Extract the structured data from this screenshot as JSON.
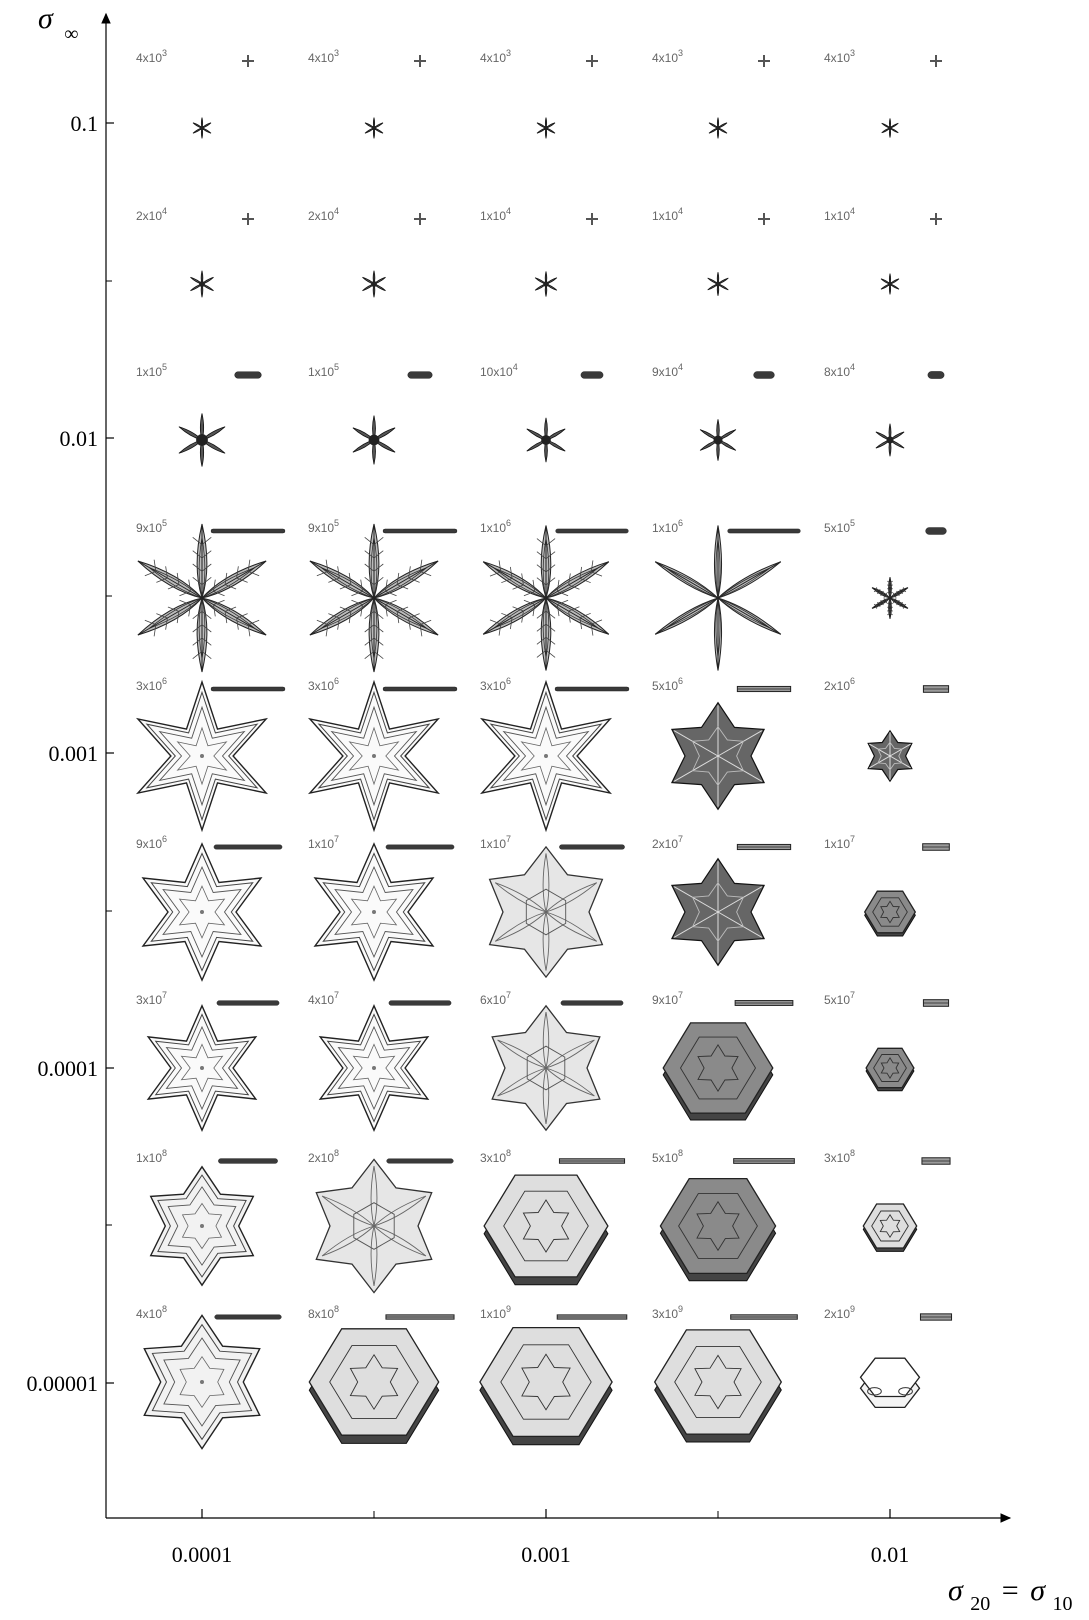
{
  "axes": {
    "y_symbol": "σ",
    "y_subscript": "∞",
    "x_symbol_a": "σ",
    "x_sub_a": "20",
    "x_equals": "=",
    "x_symbol_b": "σ",
    "x_sub_b": "10",
    "y_ticks": [
      "0.1",
      "0.01",
      "0.001",
      "0.0001",
      "0.00001"
    ],
    "x_ticks": [
      "0.0001",
      "0.001",
      "0.01"
    ],
    "scale": "log"
  },
  "rows": [
    {
      "labels": [
        [
          "4x10",
          "3"
        ],
        [
          "4x10",
          "3"
        ],
        [
          "4x10",
          "3"
        ],
        [
          "4x10",
          "3"
        ],
        [
          "4x10",
          "3"
        ]
      ],
      "sizes": [
        0.14,
        0.14,
        0.14,
        0.14,
        0.13
      ],
      "styles": [
        "star",
        "star",
        "star",
        "star",
        "star"
      ]
    },
    {
      "labels": [
        [
          "2x10",
          "4"
        ],
        [
          "2x10",
          "4"
        ],
        [
          "1x10",
          "4"
        ],
        [
          "1x10",
          "4"
        ],
        [
          "1x10",
          "4"
        ]
      ],
      "sizes": [
        0.18,
        0.18,
        0.17,
        0.16,
        0.14
      ],
      "styles": [
        "star",
        "star",
        "star",
        "star",
        "star"
      ]
    },
    {
      "labels": [
        [
          "1x10",
          "5"
        ],
        [
          "1x10",
          "5"
        ],
        [
          "10x10",
          "4"
        ],
        [
          "9x10",
          "4"
        ],
        [
          "8x10",
          "4"
        ]
      ],
      "sizes": [
        0.36,
        0.33,
        0.3,
        0.28,
        0.22
      ],
      "styles": [
        "star",
        "star",
        "star",
        "star",
        "star"
      ]
    },
    {
      "labels": [
        [
          "9x10",
          "5"
        ],
        [
          "9x10",
          "5"
        ],
        [
          "1x10",
          "6"
        ],
        [
          "1x10",
          "6"
        ],
        [
          "5x10",
          "5"
        ]
      ],
      "sizes": [
        1.0,
        1.0,
        0.98,
        0.98,
        0.28
      ],
      "styles": [
        "dendrite",
        "dendrite",
        "dendrite",
        "leaf",
        "dendrite"
      ]
    },
    {
      "labels": [
        [
          "3x10",
          "6"
        ],
        [
          "3x10",
          "6"
        ],
        [
          "3x10",
          "6"
        ],
        [
          "5x10",
          "6"
        ],
        [
          "2x10",
          "6"
        ]
      ],
      "sizes": [
        1.0,
        1.0,
        1.0,
        0.72,
        0.34
      ],
      "styles": [
        "fern",
        "fern",
        "fern",
        "dense",
        "dense"
      ]
    },
    {
      "labels": [
        [
          "9x10",
          "6"
        ],
        [
          "1x10",
          "7"
        ],
        [
          "1x10",
          "7"
        ],
        [
          "2x10",
          "7"
        ],
        [
          "1x10",
          "7"
        ]
      ],
      "sizes": [
        0.92,
        0.92,
        0.88,
        0.72,
        0.36
      ],
      "styles": [
        "sector",
        "sector",
        "sectorplate",
        "dense",
        "hexdense"
      ]
    },
    {
      "labels": [
        [
          "3x10",
          "7"
        ],
        [
          "4x10",
          "7"
        ],
        [
          "6x10",
          "7"
        ],
        [
          "9x10",
          "7"
        ],
        [
          "5x10",
          "7"
        ]
      ],
      "sizes": [
        0.84,
        0.84,
        0.84,
        0.78,
        0.34
      ],
      "styles": [
        "sector",
        "sector",
        "plate",
        "hexdense",
        "hexdense"
      ]
    },
    {
      "labels": [
        [
          "1x10",
          "8"
        ],
        [
          "2x10",
          "8"
        ],
        [
          "3x10",
          "8"
        ],
        [
          "5x10",
          "8"
        ],
        [
          "3x10",
          "8"
        ]
      ],
      "sizes": [
        0.8,
        0.9,
        0.88,
        0.82,
        0.38
      ],
      "styles": [
        "platestar",
        "plate",
        "hexplate",
        "hexdense",
        "hexplate"
      ]
    },
    {
      "labels": [
        [
          "4x10",
          "8"
        ],
        [
          "8x10",
          "8"
        ],
        [
          "1x10",
          "9"
        ],
        [
          "3x10",
          "9"
        ],
        [
          "2x10",
          "9"
        ]
      ],
      "sizes": [
        0.9,
        0.92,
        0.94,
        0.9,
        0.42
      ],
      "styles": [
        "platestar",
        "hexplate",
        "hexplate",
        "hexplate",
        "prism"
      ]
    }
  ]
}
